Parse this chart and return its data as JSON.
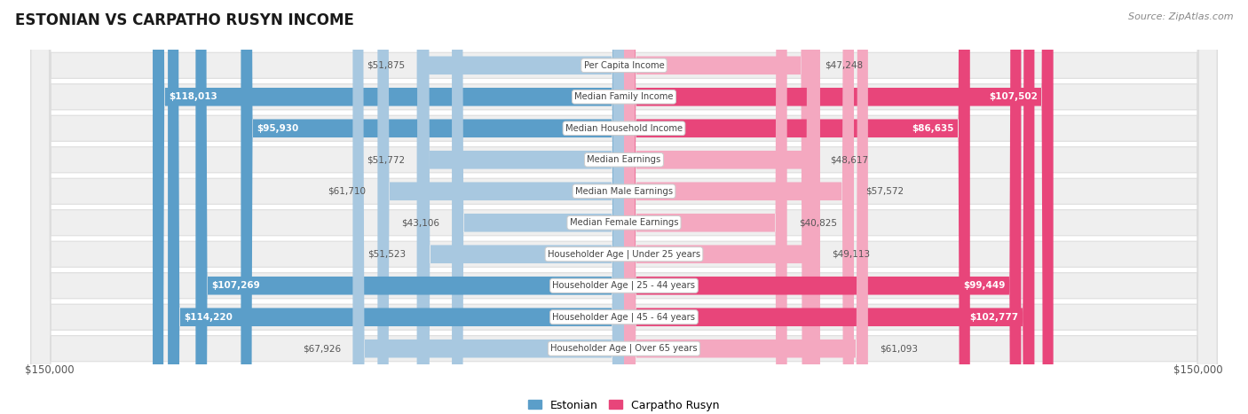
{
  "title": "ESTONIAN VS CARPATHO RUSYN INCOME",
  "source": "Source: ZipAtlas.com",
  "categories": [
    "Per Capita Income",
    "Median Family Income",
    "Median Household Income",
    "Median Earnings",
    "Median Male Earnings",
    "Median Female Earnings",
    "Householder Age | Under 25 years",
    "Householder Age | 25 - 44 years",
    "Householder Age | 45 - 64 years",
    "Householder Age | Over 65 years"
  ],
  "estonian": [
    51875,
    118013,
    95930,
    51772,
    61710,
    43106,
    51523,
    107269,
    114220,
    67926
  ],
  "carpatho_rusyn": [
    47248,
    107502,
    86635,
    48617,
    57572,
    40825,
    49113,
    99449,
    102777,
    61093
  ],
  "estonian_labels": [
    "$51,875",
    "$118,013",
    "$95,930",
    "$51,772",
    "$61,710",
    "$43,106",
    "$51,523",
    "$107,269",
    "$114,220",
    "$67,926"
  ],
  "carpatho_rusyn_labels": [
    "$47,248",
    "$107,502",
    "$86,635",
    "$48,617",
    "$57,572",
    "$40,825",
    "$49,113",
    "$99,449",
    "$102,777",
    "$61,093"
  ],
  "estonian_color_strong": "#5B9EC9",
  "estonian_color_light": "#A8C8E0",
  "carpatho_rusyn_color_strong": "#E8457A",
  "carpatho_rusyn_color_light": "#F4A8C0",
  "inside_threshold": 80000,
  "max_value": 150000,
  "background_color": "#FFFFFF",
  "row_bg_color": "#EFEFEF",
  "row_border_color": "#DDDDDD",
  "legend_estonian": "Estonian",
  "legend_carpatho_rusyn": "Carpatho Rusyn",
  "xlabel_left": "$150,000",
  "xlabel_right": "$150,000",
  "label_outside_color": "#555555",
  "label_inside_color": "#FFFFFF",
  "center_label_color": "#444444",
  "center_box_color": "#FFFFFF",
  "center_box_edge": "#CCCCCC"
}
